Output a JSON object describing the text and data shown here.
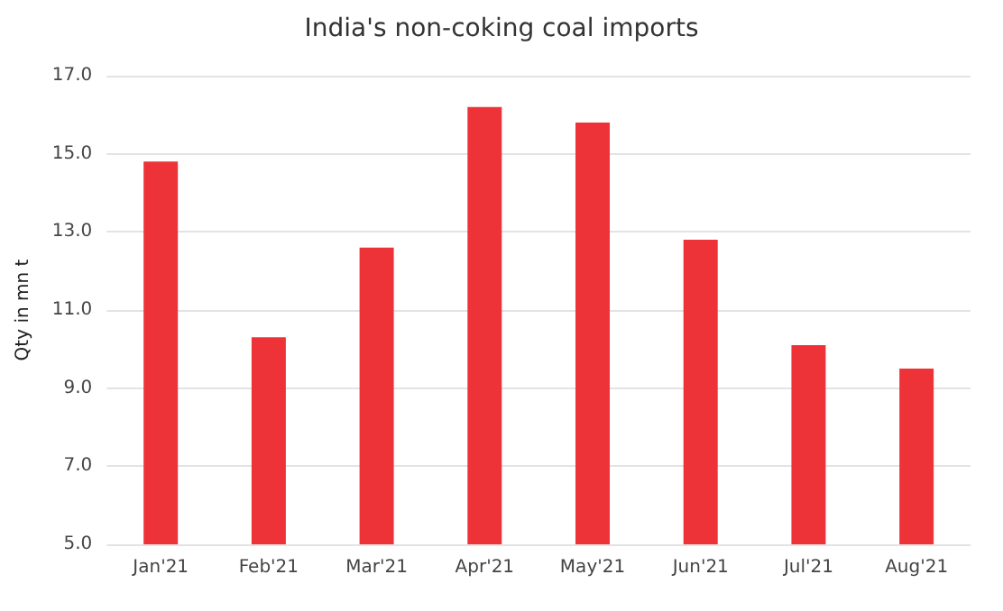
{
  "chart_data": {
    "type": "bar",
    "title": "India's non-coking coal imports",
    "ylabel": "Qty in mn t",
    "categories": [
      "Jan'21",
      "Feb'21",
      "Mar'21",
      "Apr'21",
      "May'21",
      "Jun'21",
      "Jul'21",
      "Aug'21"
    ],
    "values": [
      14.8,
      10.3,
      12.6,
      16.2,
      15.8,
      12.8,
      10.1,
      9.5
    ],
    "color": "#ee3338",
    "ylim": [
      5,
      17
    ],
    "yticks": [
      {
        "value": 5,
        "label": "5.0"
      },
      {
        "value": 7,
        "label": "7.0"
      },
      {
        "value": 9,
        "label": "9.0"
      },
      {
        "value": 11,
        "label": "11.0"
      },
      {
        "value": 13,
        "label": "13.0"
      },
      {
        "value": 15,
        "label": "15.0"
      },
      {
        "value": 17,
        "label": "17.0"
      }
    ],
    "grid": "y"
  }
}
